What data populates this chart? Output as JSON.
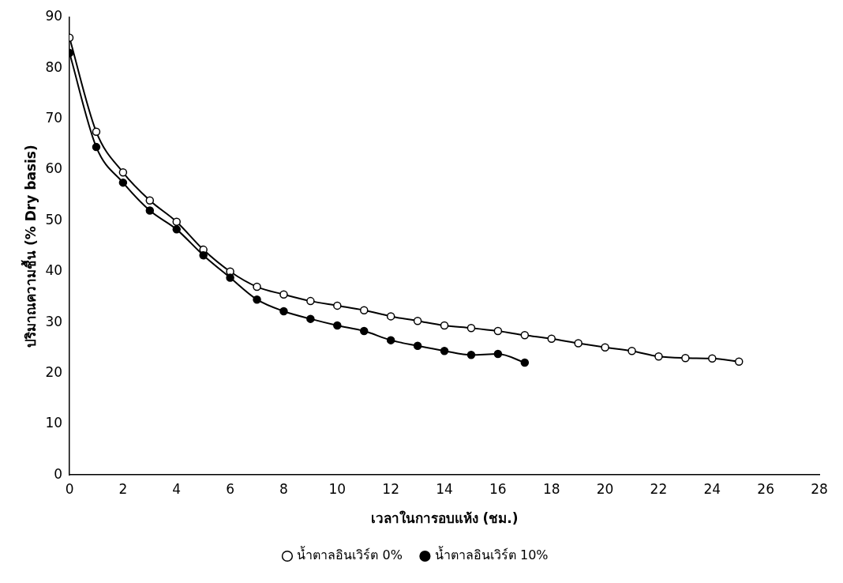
{
  "chart_data": {
    "type": "line",
    "xlabel": "เวลาในการอบแห้ง (ชม.)",
    "ylabel": "ปริมาณความชื้น (% Dry basis)",
    "xlim": [
      0,
      28
    ],
    "xticks": [
      0,
      2,
      4,
      6,
      8,
      10,
      12,
      14,
      16,
      18,
      20,
      22,
      24,
      26,
      28
    ],
    "ylim": [
      0,
      90
    ],
    "yticks": [
      0,
      10,
      20,
      30,
      40,
      50,
      60,
      70,
      80,
      90
    ],
    "grid": false,
    "legend": "bottom",
    "marker": "circle",
    "line_style": "solid",
    "series": [
      {
        "name": "น้ำตาลอินเวิร์ต 0%",
        "color": "#000000",
        "x": [
          0,
          1,
          2,
          3,
          4,
          5,
          6,
          7,
          8,
          9,
          10,
          11,
          12,
          13,
          14,
          15,
          16,
          17,
          18,
          19,
          20,
          21,
          22,
          23,
          24,
          25
        ],
        "values": [
          86,
          67.5,
          59.5,
          54,
          49.8,
          44.3,
          40,
          37,
          35.5,
          34.2,
          33.3,
          32.4,
          31.2,
          30.3,
          29.4,
          28.9,
          28.3,
          27.5,
          26.8,
          25.9,
          25.1,
          24.4,
          23.3,
          23,
          22.9,
          22.3
        ]
      },
      {
        "name": "น้ำตาลอินเวิร์ต 10%",
        "color": "#000000",
        "x": [
          0,
          1,
          2,
          3,
          4,
          5,
          6,
          7,
          8,
          9,
          10,
          11,
          12,
          13,
          14,
          15,
          16,
          17
        ],
        "values": [
          83,
          64.5,
          57.5,
          52,
          48.3,
          43.2,
          38.8,
          34.5,
          32.2,
          30.7,
          29.4,
          28.3,
          26.5,
          25.4,
          24.4,
          23.6,
          23.8,
          22.1
        ]
      }
    ]
  }
}
